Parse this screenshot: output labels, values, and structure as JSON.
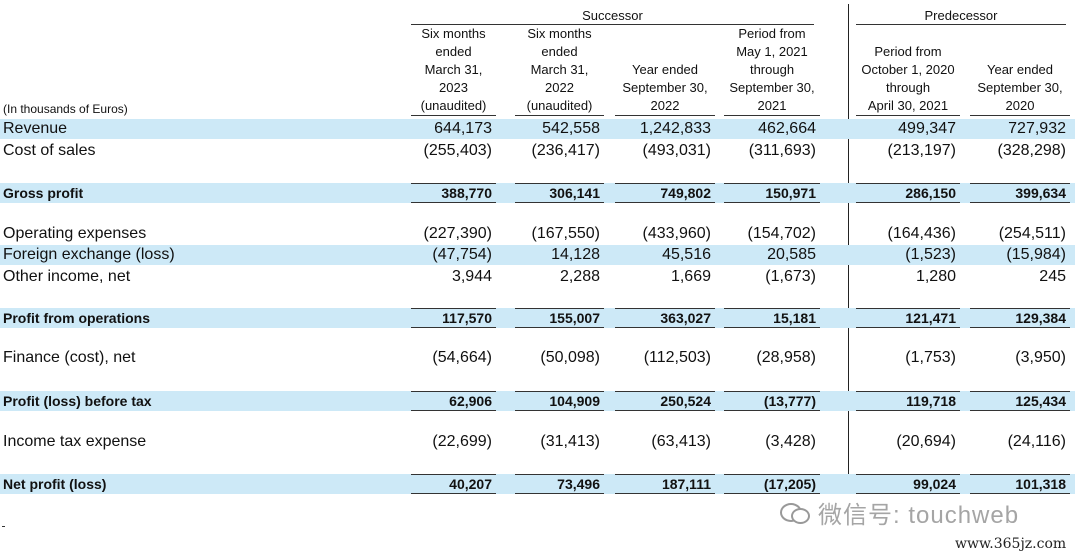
{
  "groups": {
    "successor": "Successor",
    "predecessor": "Predecessor"
  },
  "units_label": "(In thousands of Euros)",
  "columns": [
    {
      "lines": [
        "Six months",
        "ended",
        "March 31,",
        "2023",
        "(unaudited)"
      ]
    },
    {
      "lines": [
        "Six months",
        "ended",
        "March 31,",
        "2022",
        "(unaudited)"
      ]
    },
    {
      "lines": [
        "Year ended",
        "September 30,",
        "2022"
      ]
    },
    {
      "lines": [
        "Period from",
        "May 1, 2021",
        "through",
        "September 30,",
        "2021"
      ]
    },
    {
      "lines": [
        "Period from",
        "October 1, 2020",
        "through",
        "April 30, 2021"
      ]
    },
    {
      "lines": [
        "Year ended",
        "September 30,",
        "2020"
      ]
    }
  ],
  "rows": [
    {
      "label": "Revenue",
      "values": [
        "644,173",
        "542,558",
        "1,242,833",
        "462,664",
        "499,347",
        "727,932"
      ],
      "highlight": true,
      "bold": false
    },
    {
      "label": "Cost of sales",
      "values": [
        "(255,403)",
        "(236,417)",
        "(493,031)",
        "(311,693)",
        "(213,197)",
        "(328,298)"
      ],
      "highlight": false,
      "bold": false
    },
    {
      "label": "Gross profit",
      "values": [
        "388,770",
        "306,141",
        "749,802",
        "150,971",
        "286,150",
        "399,634"
      ],
      "highlight": true,
      "bold": true
    },
    {
      "label": "Operating expenses",
      "values": [
        "(227,390)",
        "(167,550)",
        "(433,960)",
        "(154,702)",
        "(164,436)",
        "(254,511)"
      ],
      "highlight": false,
      "bold": false
    },
    {
      "label": "Foreign exchange (loss)",
      "values": [
        "(47,754)",
        "14,128",
        "45,516",
        "20,585",
        "(1,523)",
        "(15,984)"
      ],
      "highlight": true,
      "bold": false
    },
    {
      "label": "Other income, net",
      "values": [
        "3,944",
        "2,288",
        "1,669",
        "(1,673)",
        "1,280",
        "245"
      ],
      "highlight": false,
      "bold": false
    },
    {
      "label": "Profit from operations",
      "values": [
        "117,570",
        "155,007",
        "363,027",
        "15,181",
        "121,471",
        "129,384"
      ],
      "highlight": true,
      "bold": true
    },
    {
      "label": "Finance (cost), net",
      "values": [
        "(54,664)",
        "(50,098)",
        "(112,503)",
        "(28,958)",
        "(1,753)",
        "(3,950)"
      ],
      "highlight": false,
      "bold": false
    },
    {
      "label": "Profit (loss) before tax",
      "values": [
        "62,906",
        "104,909",
        "250,524",
        "(13,777)",
        "119,718",
        "125,434"
      ],
      "highlight": true,
      "bold": true
    },
    {
      "label": "Income tax expense",
      "values": [
        "(22,699)",
        "(31,413)",
        "(63,413)",
        "(3,428)",
        "(20,694)",
        "(24,116)"
      ],
      "highlight": false,
      "bold": false
    },
    {
      "label": "Net profit (loss)",
      "values": [
        "40,207",
        "73,496",
        "187,111",
        "(17,205)",
        "99,024",
        "101,318"
      ],
      "highlight": true,
      "bold": true
    }
  ],
  "watermark": {
    "icon": "wechat-icon",
    "text": "微信号: touchweb"
  },
  "site_text": "www.365jz.com",
  "colors": {
    "highlight": "#cde9f7",
    "watermark": "#a5a5a5"
  }
}
